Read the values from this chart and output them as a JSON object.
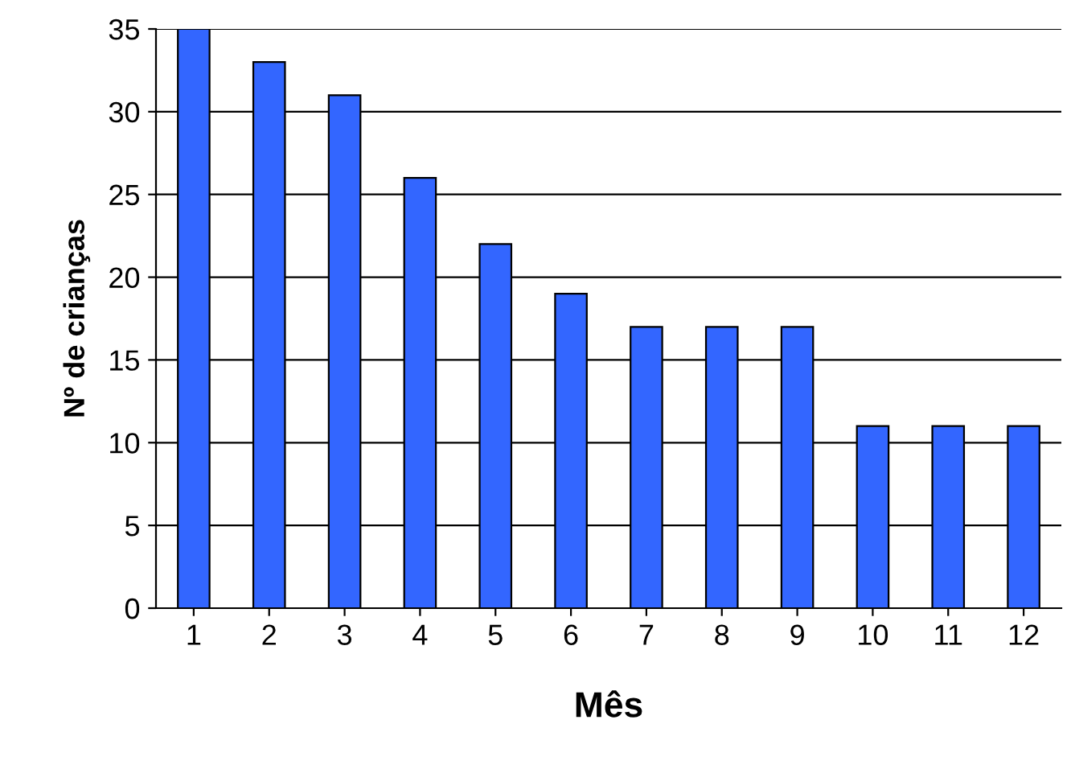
{
  "chart_data": {
    "type": "bar",
    "xlabel": "Mês",
    "ylabel": "Nº de crianças",
    "categories": [
      "1",
      "2",
      "3",
      "4",
      "5",
      "6",
      "7",
      "8",
      "9",
      "10",
      "11",
      "12"
    ],
    "values": [
      35,
      33,
      31,
      26,
      22,
      19,
      17,
      17,
      17,
      11,
      11,
      11
    ],
    "color": "#3366ff",
    "ylim": [
      0,
      35
    ],
    "yticks": [
      0,
      5,
      10,
      15,
      20,
      25,
      30,
      35
    ],
    "grid": "y",
    "legend": false
  }
}
